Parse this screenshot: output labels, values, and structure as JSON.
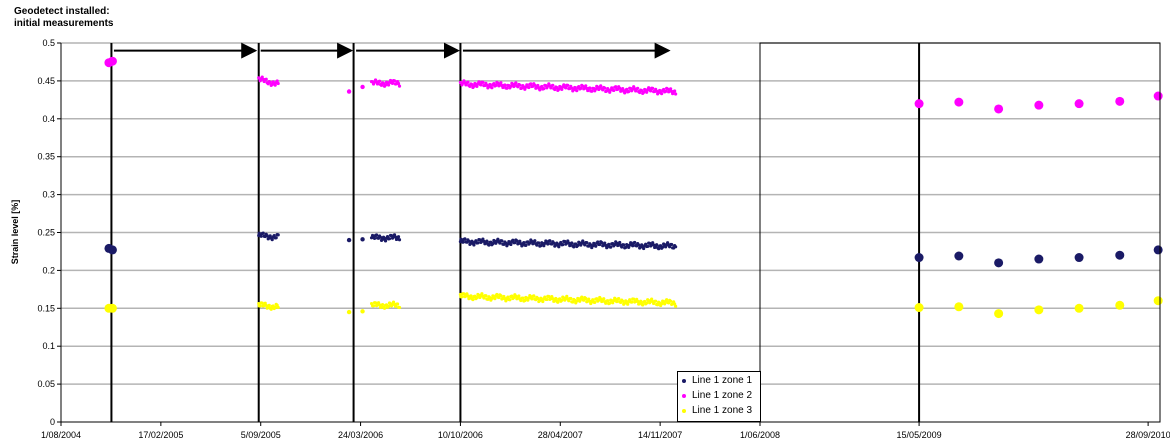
{
  "chart_data": {
    "type": "scatter",
    "title": "",
    "ylabel": "Strain level [%]",
    "xlabel": "",
    "ylim": [
      0,
      0.5
    ],
    "y_ticks": [
      "0",
      "0.05",
      "0.1",
      "0.15",
      "0.2",
      "0.25",
      "0.3",
      "0.35",
      "0.4",
      "0.45",
      "0.5"
    ],
    "x_range": [
      "2004-08-01",
      "2010-10-24"
    ],
    "x_ticks": [
      {
        "date": "2004-08-01",
        "label": "1/08/2004"
      },
      {
        "date": "2005-02-17",
        "label": "17/02/2005"
      },
      {
        "date": "2005-09-05",
        "label": "5/09/2005"
      },
      {
        "date": "2006-03-24",
        "label": "24/03/2006"
      },
      {
        "date": "2006-10-10",
        "label": "10/10/2006"
      },
      {
        "date": "2007-04-28",
        "label": "28/04/2007"
      },
      {
        "date": "2007-11-14",
        "label": "14/11/2007"
      },
      {
        "date": "2008-06-01",
        "label": "1/06/2008"
      },
      {
        "date": "2009-05-15",
        "label": "15/05/2009"
      },
      {
        "date": "2010-09-28",
        "label": "28/09/2010"
      }
    ],
    "annotation": [
      "Geodetect installed:",
      "initial measurements"
    ],
    "vertical_lines": [
      "2004-11-10",
      "2005-09-01",
      "2006-03-10",
      "2006-10-10",
      "2009-05-15"
    ],
    "arrows": [
      {
        "from": "2004-11-15",
        "to": "2005-08-25",
        "y": 0.49
      },
      {
        "from": "2005-09-05",
        "to": "2006-03-05",
        "y": 0.49
      },
      {
        "from": "2006-03-15",
        "to": "2006-10-05",
        "y": 0.49
      },
      {
        "from": "2006-10-15",
        "to": "2007-12-01",
        "y": 0.49
      }
    ],
    "legend_position": "bottom-center",
    "series": [
      {
        "name": "Line 1 zone 1",
        "color": "#1a1a66",
        "segments": [
          {
            "start": "2005-09-01",
            "end": "2005-10-10",
            "y0": 0.246,
            "y1": 0.244
          },
          {
            "start": "2006-04-15",
            "end": "2006-06-10",
            "y0": 0.243,
            "y1": 0.243
          },
          {
            "start": "2006-10-10",
            "end": "2007-12-15",
            "y0": 0.238,
            "y1": 0.232
          }
        ],
        "points": [
          {
            "x": "2004-11-05",
            "y": 0.229
          },
          {
            "x": "2004-11-12",
            "y": 0.227
          },
          {
            "x": "2006-03-01",
            "y": 0.24
          },
          {
            "x": "2006-03-28",
            "y": 0.241
          },
          {
            "x": "2009-05-15",
            "y": 0.217
          },
          {
            "x": "2009-08-10",
            "y": 0.219
          },
          {
            "x": "2009-11-05",
            "y": 0.21
          },
          {
            "x": "2010-02-01",
            "y": 0.215
          },
          {
            "x": "2010-04-30",
            "y": 0.217
          },
          {
            "x": "2010-07-28",
            "y": 0.22
          },
          {
            "x": "2010-10-20",
            "y": 0.227
          }
        ]
      },
      {
        "name": "Line 1 zone 2",
        "color": "#ff00ff",
        "segments": [
          {
            "start": "2005-09-01",
            "end": "2005-10-10",
            "y0": 0.452,
            "y1": 0.446
          },
          {
            "start": "2006-04-15",
            "end": "2006-06-10",
            "y0": 0.447,
            "y1": 0.447
          },
          {
            "start": "2006-10-10",
            "end": "2007-12-15",
            "y0": 0.446,
            "y1": 0.436
          }
        ],
        "points": [
          {
            "x": "2004-11-05",
            "y": 0.474
          },
          {
            "x": "2004-11-12",
            "y": 0.476
          },
          {
            "x": "2006-03-01",
            "y": 0.436
          },
          {
            "x": "2006-03-28",
            "y": 0.442
          },
          {
            "x": "2009-05-15",
            "y": 0.42
          },
          {
            "x": "2009-08-10",
            "y": 0.422
          },
          {
            "x": "2009-11-05",
            "y": 0.413
          },
          {
            "x": "2010-02-01",
            "y": 0.418
          },
          {
            "x": "2010-04-30",
            "y": 0.42
          },
          {
            "x": "2010-07-28",
            "y": 0.423
          },
          {
            "x": "2010-10-20",
            "y": 0.43
          }
        ]
      },
      {
        "name": "Line 1 zone 3",
        "color": "#ffff00",
        "segments": [
          {
            "start": "2005-09-01",
            "end": "2005-10-10",
            "y0": 0.154,
            "y1": 0.152
          },
          {
            "start": "2006-04-15",
            "end": "2006-06-10",
            "y0": 0.154,
            "y1": 0.154
          },
          {
            "start": "2006-10-10",
            "end": "2007-12-15",
            "y0": 0.166,
            "y1": 0.157
          }
        ],
        "points": [
          {
            "x": "2004-11-05",
            "y": 0.15
          },
          {
            "x": "2004-11-12",
            "y": 0.15
          },
          {
            "x": "2006-03-01",
            "y": 0.145
          },
          {
            "x": "2006-03-28",
            "y": 0.146
          },
          {
            "x": "2009-05-15",
            "y": 0.151
          },
          {
            "x": "2009-08-10",
            "y": 0.152
          },
          {
            "x": "2009-11-05",
            "y": 0.143
          },
          {
            "x": "2010-02-01",
            "y": 0.148
          },
          {
            "x": "2010-04-30",
            "y": 0.15
          },
          {
            "x": "2010-07-28",
            "y": 0.154
          },
          {
            "x": "2010-10-20",
            "y": 0.16
          }
        ]
      }
    ]
  }
}
